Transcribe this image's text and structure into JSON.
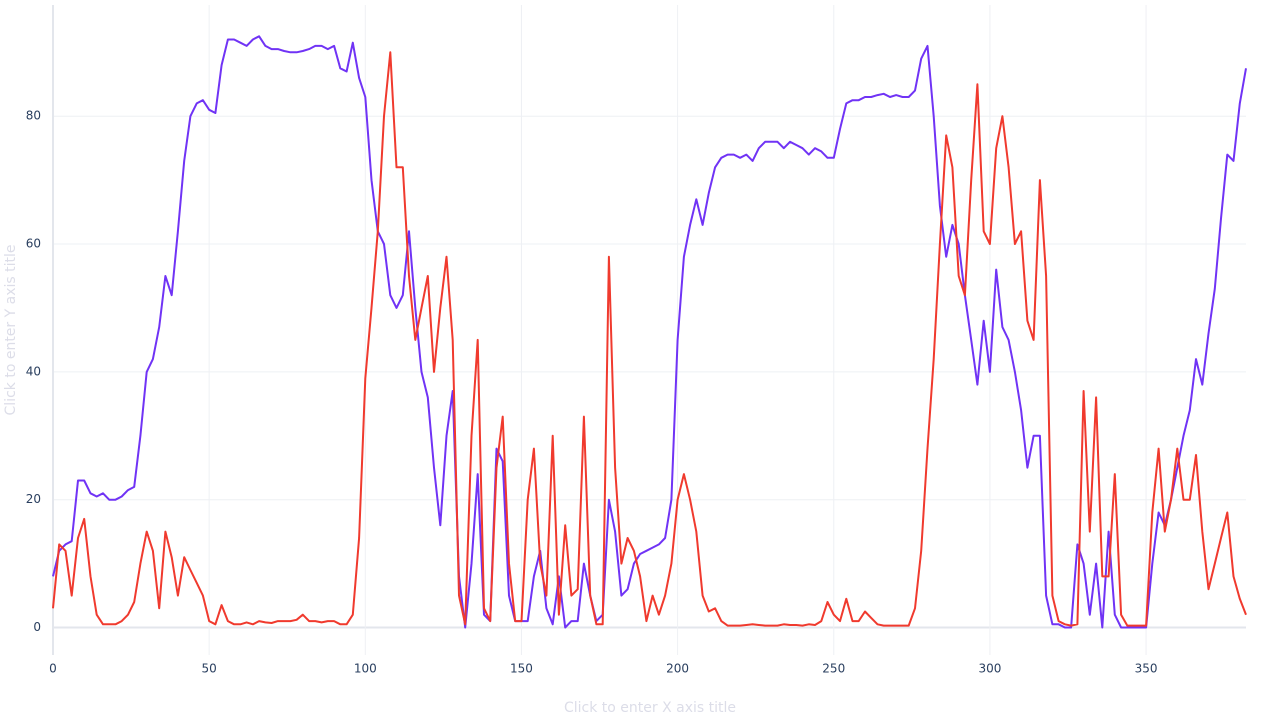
{
  "chart_data": {
    "type": "line",
    "x_title": "Click to enter X axis title",
    "y_title": "Click to enter Y axis title",
    "x": [
      0,
      2,
      4,
      6,
      8,
      10,
      12,
      14,
      16,
      18,
      20,
      22,
      24,
      26,
      28,
      30,
      32,
      34,
      36,
      38,
      40,
      42,
      44,
      46,
      48,
      50,
      52,
      54,
      56,
      58,
      60,
      62,
      64,
      66,
      68,
      70,
      72,
      74,
      76,
      78,
      80,
      82,
      84,
      86,
      88,
      90,
      92,
      94,
      96,
      98,
      100,
      102,
      104,
      106,
      108,
      110,
      112,
      114,
      116,
      118,
      120,
      122,
      124,
      126,
      128,
      130,
      132,
      134,
      136,
      138,
      140,
      142,
      144,
      146,
      148,
      150,
      152,
      154,
      156,
      158,
      160,
      162,
      164,
      166,
      168,
      170,
      172,
      174,
      176,
      178,
      180,
      182,
      184,
      186,
      188,
      190,
      192,
      194,
      196,
      198,
      200,
      202,
      204,
      206,
      208,
      210,
      212,
      214,
      216,
      218,
      220,
      222,
      224,
      226,
      228,
      230,
      232,
      234,
      236,
      238,
      240,
      242,
      244,
      246,
      248,
      250,
      252,
      254,
      256,
      258,
      260,
      262,
      264,
      266,
      268,
      270,
      272,
      274,
      276,
      278,
      280,
      282,
      284,
      286,
      288,
      290,
      292,
      294,
      296,
      298,
      300,
      302,
      304,
      306,
      308,
      310,
      312,
      314,
      316,
      318,
      320,
      322,
      324,
      326,
      328,
      330,
      332,
      334,
      336,
      338,
      340,
      342,
      344,
      346,
      348,
      350,
      352,
      354,
      356,
      358,
      360,
      362,
      364,
      366,
      368,
      370,
      372,
      374,
      376,
      378,
      380,
      382
    ],
    "series": [
      {
        "color": "#7033f5",
        "values": [
          8,
          12,
          13,
          13.5,
          23,
          23,
          21,
          20.5,
          21,
          20,
          20,
          20.5,
          21.5,
          22,
          30,
          40,
          42,
          47,
          55,
          52,
          62,
          73,
          80,
          82,
          82.5,
          81,
          80.5,
          88,
          92,
          92,
          91.5,
          91,
          92,
          92.5,
          91,
          90.5,
          90.5,
          90.2,
          90,
          90,
          90.2,
          90.5,
          91,
          91,
          90.5,
          91,
          87.5,
          87,
          91.5,
          86,
          83,
          70,
          62,
          60,
          52,
          50,
          52,
          62,
          50,
          40,
          36,
          25,
          16,
          30,
          37,
          8,
          0,
          10,
          24,
          2,
          1,
          28,
          26,
          5,
          1,
          1,
          1,
          8,
          12,
          3,
          0.5,
          8,
          0,
          1,
          1,
          10,
          5,
          1,
          2,
          20,
          15,
          5,
          6,
          10,
          11.5,
          12,
          12.5,
          13,
          14,
          20,
          45,
          58,
          63,
          67,
          63,
          68,
          72,
          73.5,
          74,
          74,
          73.5,
          74,
          73,
          75,
          76,
          76,
          76,
          75,
          76,
          75.5,
          75,
          74,
          75,
          74.5,
          73.5,
          73.5,
          78,
          82,
          82.5,
          82.5,
          83,
          83,
          83.3,
          83.5,
          83,
          83.3,
          83,
          83,
          84,
          89,
          91,
          80,
          66,
          58,
          63,
          60,
          52,
          45,
          38,
          48,
          40,
          56,
          47,
          45,
          40,
          34,
          25,
          30,
          30,
          5,
          0.5,
          0.5,
          0,
          0,
          13,
          10,
          2,
          10,
          0,
          15,
          2,
          0,
          0,
          0,
          0,
          0,
          10,
          18,
          16,
          20,
          25,
          30,
          34,
          42,
          38,
          46,
          53,
          64,
          74,
          73,
          82,
          87.5
        ]
      },
      {
        "color": "#f03a2e",
        "values": [
          3,
          13,
          12,
          5,
          14,
          17,
          8,
          2,
          0.5,
          0.5,
          0.5,
          1,
          2,
          4,
          10,
          15,
          12,
          3,
          15,
          11,
          5,
          11,
          9,
          7,
          5,
          1,
          0.5,
          3.5,
          1,
          0.5,
          0.5,
          0.8,
          0.5,
          1,
          0.8,
          0.7,
          1,
          1,
          1,
          1.2,
          2,
          1,
          1,
          0.8,
          1,
          1,
          0.5,
          0.5,
          2,
          14,
          39,
          50,
          62,
          80,
          90,
          72,
          72,
          55,
          45,
          50,
          55,
          40,
          50,
          58,
          45,
          5,
          0.5,
          30,
          45,
          3,
          1,
          25,
          33,
          10,
          1,
          1,
          20,
          28,
          10,
          5,
          30,
          2,
          16,
          5,
          6,
          33,
          5,
          0.5,
          0.5,
          58,
          25,
          10,
          14,
          12,
          8,
          1,
          5,
          2,
          5,
          10,
          20,
          24,
          20,
          15,
          5,
          2.5,
          3,
          1,
          0.3,
          0.3,
          0.3,
          0.4,
          0.5,
          0.4,
          0.3,
          0.3,
          0.3,
          0.5,
          0.4,
          0.4,
          0.3,
          0.5,
          0.4,
          1,
          4,
          2,
          1,
          4.5,
          1,
          1,
          2.5,
          1.5,
          0.5,
          0.3,
          0.3,
          0.3,
          0.3,
          0.3,
          3,
          12,
          28,
          42,
          60,
          77,
          72,
          55,
          52,
          70,
          85,
          62,
          60,
          75,
          80,
          72,
          60,
          62,
          48,
          45,
          70,
          55,
          5,
          1,
          0.5,
          0.3,
          0.5,
          37,
          15,
          36,
          8,
          8,
          24,
          2,
          0.3,
          0.3,
          0.3,
          0.3,
          18,
          28,
          15,
          20,
          28,
          20,
          20,
          27,
          15,
          6,
          10,
          14,
          18,
          8,
          4.5,
          2
        ]
      }
    ],
    "xlim": [
      0,
      382
    ],
    "ylim": [
      -4.3,
      97.4
    ],
    "xticks": [
      0,
      50,
      100,
      150,
      200,
      250,
      300,
      350
    ],
    "yticks": [
      0,
      20,
      40,
      60,
      80
    ],
    "grid": true
  }
}
